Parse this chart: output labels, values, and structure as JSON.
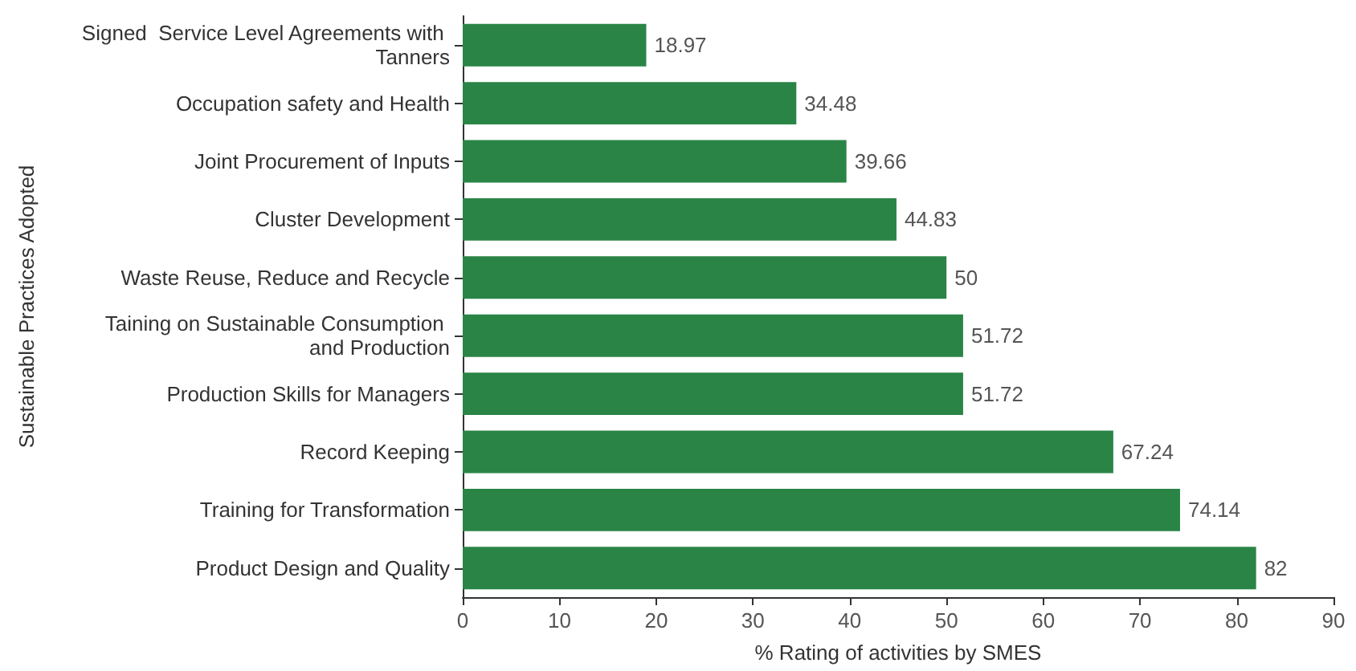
{
  "chart_data": {
    "type": "bar",
    "orientation": "horizontal",
    "xlabel": "% Rating of activities by SMES",
    "ylabel": "Sustainable Practices Adopted",
    "categories": [
      "Signed  Service Level Agreements with Tanners",
      "Occupation safety and Health",
      "Joint Procurement of Inputs",
      "Cluster Development",
      "Waste Reuse, Reduce and Recycle",
      "Taining on Sustainable Consumption and Production",
      "Production Skills for Managers",
      "Record Keeping",
      "Training for Transformation",
      "Product Design and Quality"
    ],
    "values": [
      18.97,
      34.48,
      39.66,
      44.83,
      50,
      51.72,
      51.72,
      67.24,
      74.14,
      82
    ],
    "color": "#2a8446",
    "xlim": [
      0,
      90
    ],
    "xticks": [
      0,
      10,
      20,
      30,
      40,
      50,
      60,
      70,
      80,
      90
    ],
    "data_labels": true,
    "grid": false
  }
}
